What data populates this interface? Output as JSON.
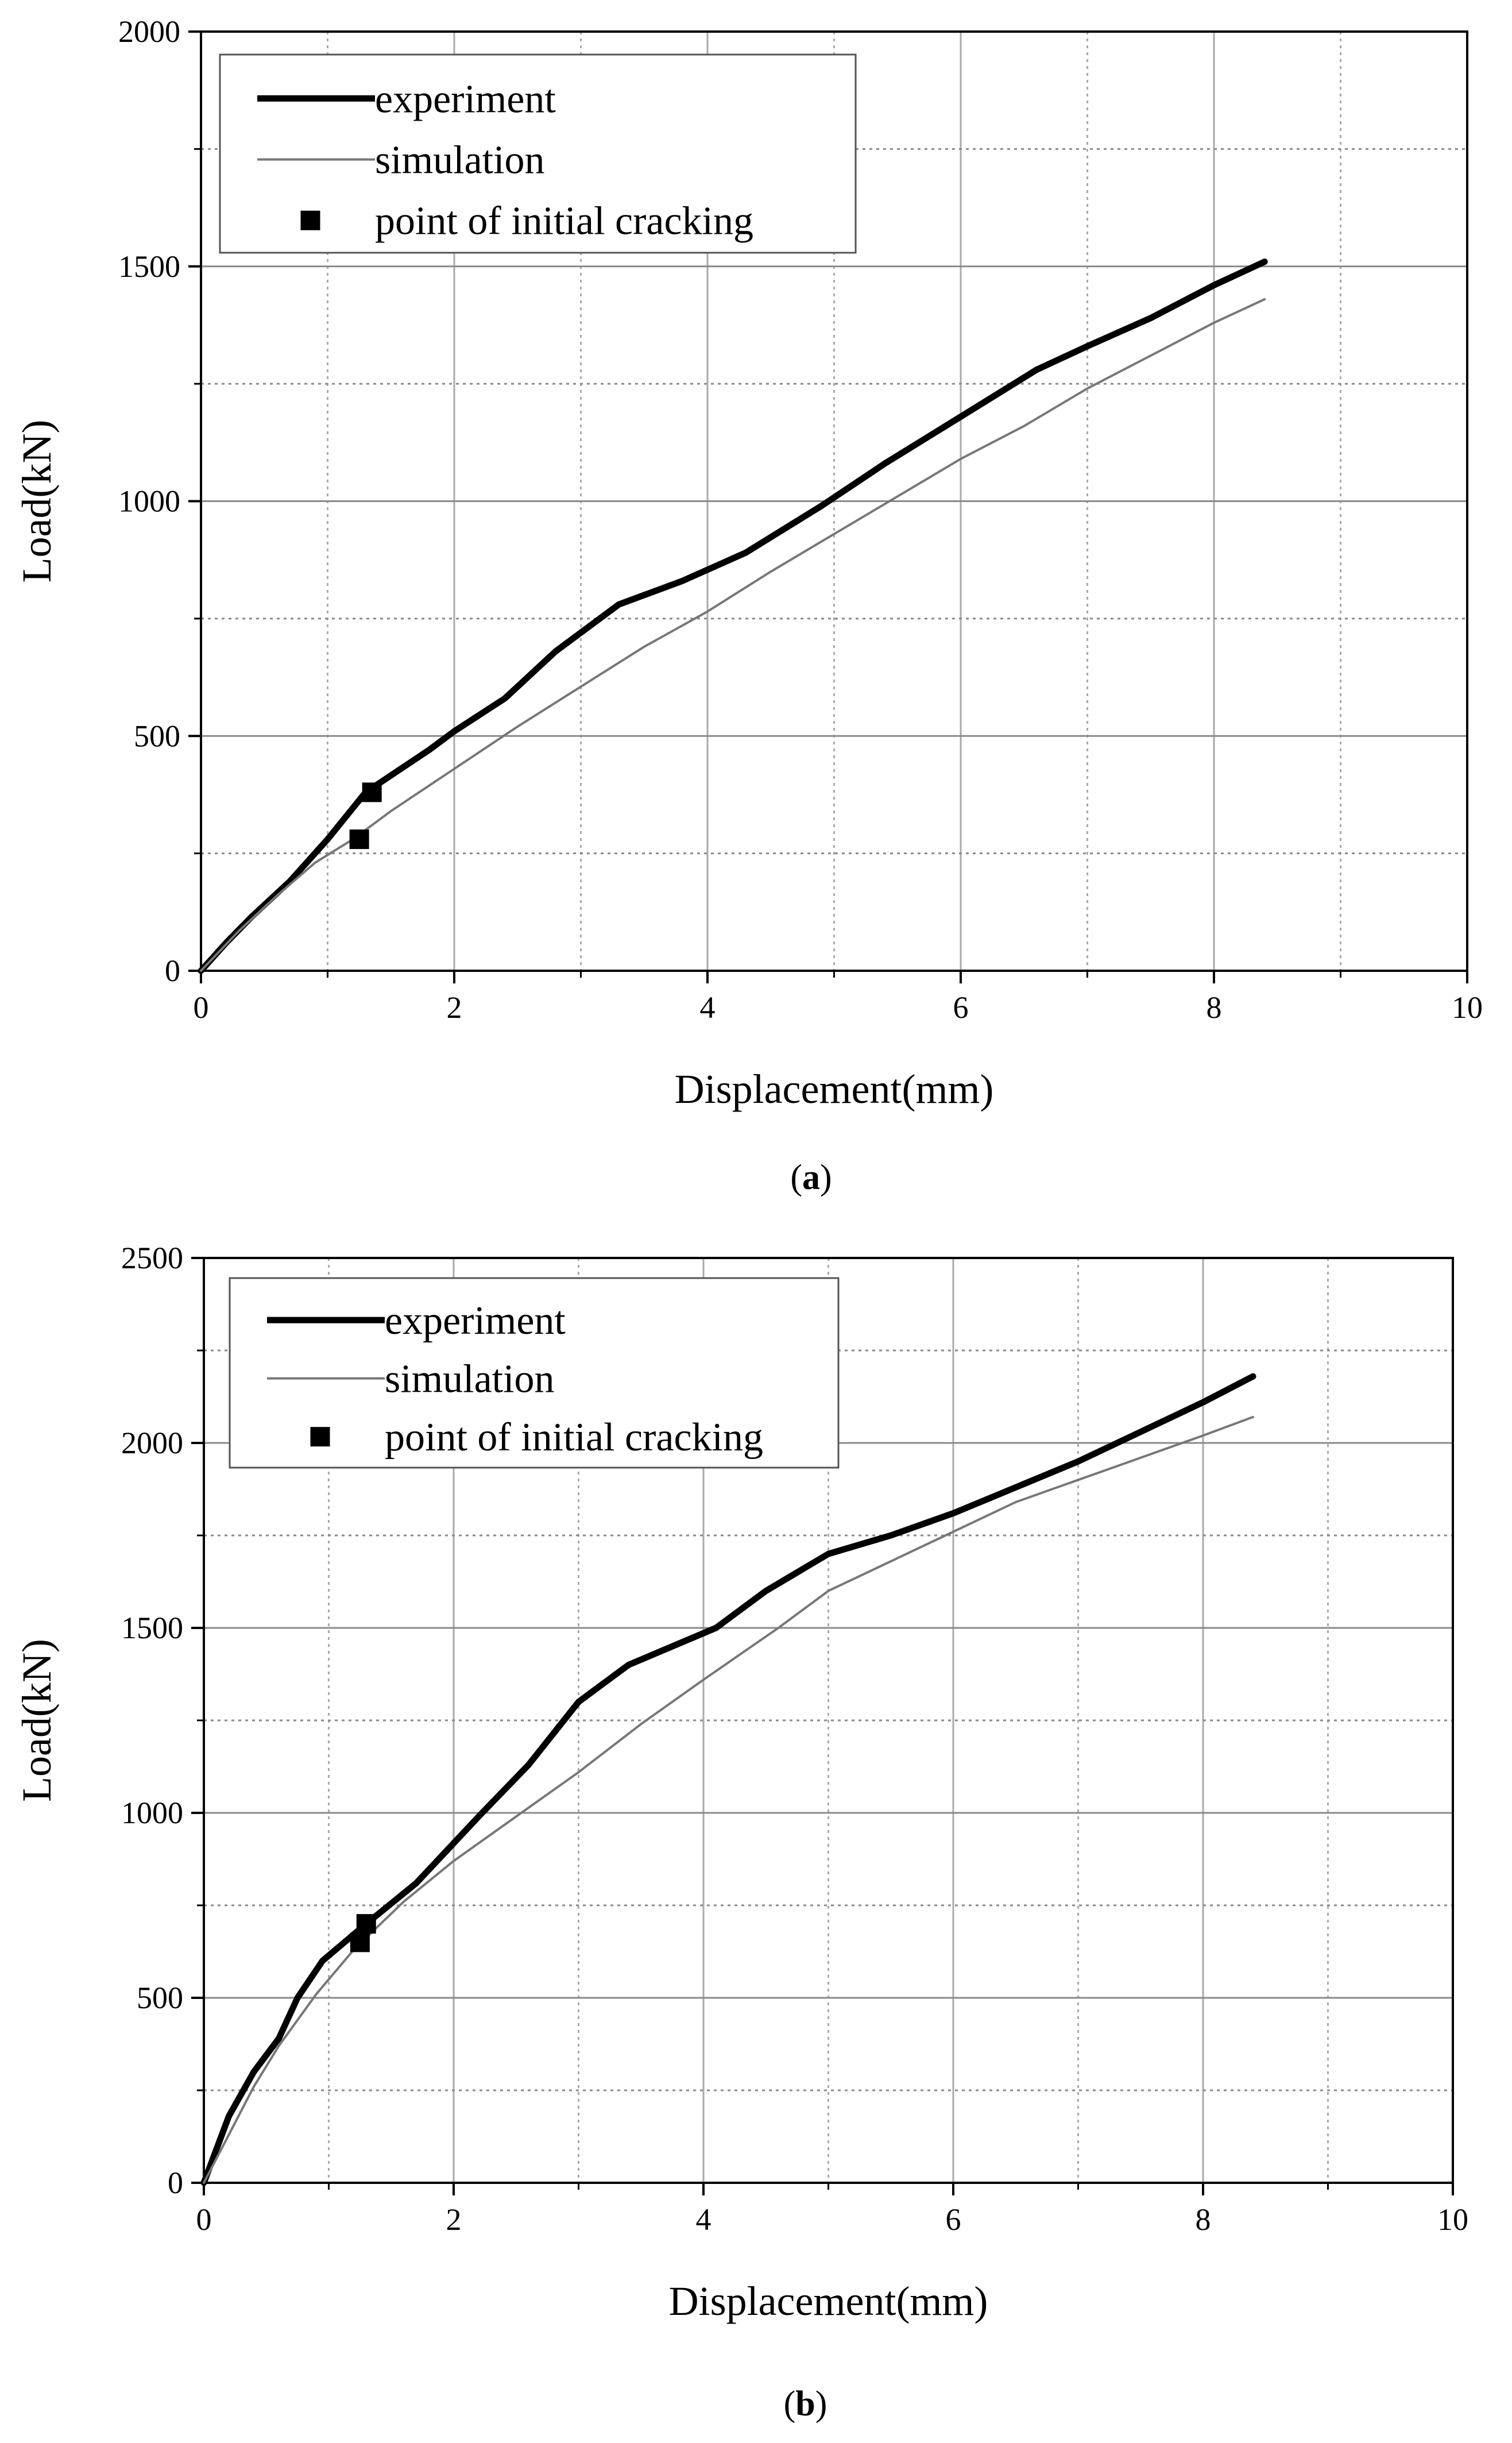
{
  "chart_data": [
    {
      "type": "line",
      "panel_label": "a",
      "xlabel": "Displacement(mm)",
      "ylabel": "Load(kN)",
      "xlim": [
        0,
        10
      ],
      "ylim": [
        0,
        2000
      ],
      "xticks": [
        0,
        2,
        4,
        6,
        8,
        10
      ],
      "xtick_labels": [
        "0",
        "2",
        "4",
        "6",
        "8",
        "10"
      ],
      "yticks": [
        0,
        500,
        1000,
        1500,
        2000
      ],
      "ytick_labels": [
        "0",
        "500",
        "1000",
        "1500",
        "2000"
      ],
      "grid": true,
      "legend_position": "top-left",
      "legend": [
        "experiment",
        "simulation",
        "point of initial cracking"
      ],
      "series": [
        {
          "name": "experiment",
          "style": "thick",
          "color": "#000000",
          "x": [
            0,
            0.2,
            0.4,
            0.7,
            1.0,
            1.3,
            1.8,
            2.0,
            2.4,
            2.8,
            3.3,
            3.8,
            4.3,
            4.9,
            5.4,
            6.0,
            6.6,
            7.0,
            7.5,
            8.0,
            8.4
          ],
          "y": [
            0,
            60,
            115,
            190,
            280,
            380,
            470,
            510,
            580,
            680,
            780,
            830,
            890,
            990,
            1080,
            1180,
            1280,
            1330,
            1390,
            1460,
            1510
          ]
        },
        {
          "name": "simulation",
          "style": "thin",
          "color": "#777777",
          "x": [
            0,
            0.3,
            0.6,
            0.9,
            1.2,
            1.5,
            2.0,
            2.5,
            3.0,
            3.5,
            4.0,
            4.5,
            5.0,
            5.5,
            6.0,
            6.5,
            7.0,
            7.5,
            8.0,
            8.4
          ],
          "y": [
            0,
            85,
            160,
            230,
            280,
            340,
            430,
            520,
            605,
            690,
            765,
            850,
            930,
            1010,
            1090,
            1160,
            1240,
            1310,
            1380,
            1430
          ]
        }
      ],
      "cracking_points": {
        "name": "point of initial cracking",
        "x": [
          1.35,
          1.25
        ],
        "y": [
          380,
          280
        ]
      }
    },
    {
      "type": "line",
      "panel_label": "b",
      "xlabel": "Displacement(mm)",
      "ylabel": "Load(kN)",
      "xlim": [
        0,
        10
      ],
      "ylim": [
        0,
        2500
      ],
      "xticks": [
        0,
        2,
        4,
        6,
        8,
        10
      ],
      "xtick_labels": [
        "0",
        "2",
        "4",
        "6",
        "8",
        "10"
      ],
      "yticks": [
        0,
        500,
        1000,
        1500,
        2000,
        2500
      ],
      "ytick_labels": [
        "0",
        "500",
        "1000",
        "1500",
        "2000",
        "2500"
      ],
      "grid": true,
      "legend_position": "top-left",
      "legend": [
        "experiment",
        "simulation",
        "point of initial cracking"
      ],
      "series": [
        {
          "name": "experiment",
          "style": "thick",
          "color": "#000000",
          "x": [
            0,
            0.2,
            0.4,
            0.6,
            0.75,
            0.95,
            1.3,
            1.7,
            2.2,
            2.6,
            3.0,
            3.4,
            4.1,
            4.5,
            5.0,
            5.5,
            6.0,
            6.5,
            7.0,
            7.5,
            8.0,
            8.4
          ],
          "y": [
            0,
            180,
            300,
            390,
            500,
            600,
            700,
            810,
            990,
            1130,
            1300,
            1400,
            1500,
            1600,
            1700,
            1750,
            1810,
            1880,
            1950,
            2030,
            2110,
            2180
          ]
        },
        {
          "name": "simulation",
          "style": "thin",
          "color": "#777777",
          "x": [
            0,
            0.2,
            0.4,
            0.6,
            0.9,
            1.2,
            1.6,
            2.0,
            2.5,
            3.0,
            3.5,
            4.0,
            4.6,
            5.0,
            5.5,
            6.0,
            6.5,
            7.0,
            7.5,
            8.0,
            8.4
          ],
          "y": [
            0,
            130,
            260,
            370,
            510,
            630,
            760,
            870,
            990,
            1110,
            1240,
            1360,
            1500,
            1600,
            1680,
            1760,
            1840,
            1900,
            1960,
            2020,
            2070
          ]
        }
      ],
      "cracking_points": {
        "name": "point of initial cracking",
        "x": [
          1.3,
          1.25
        ],
        "y": [
          700,
          650
        ]
      }
    }
  ]
}
